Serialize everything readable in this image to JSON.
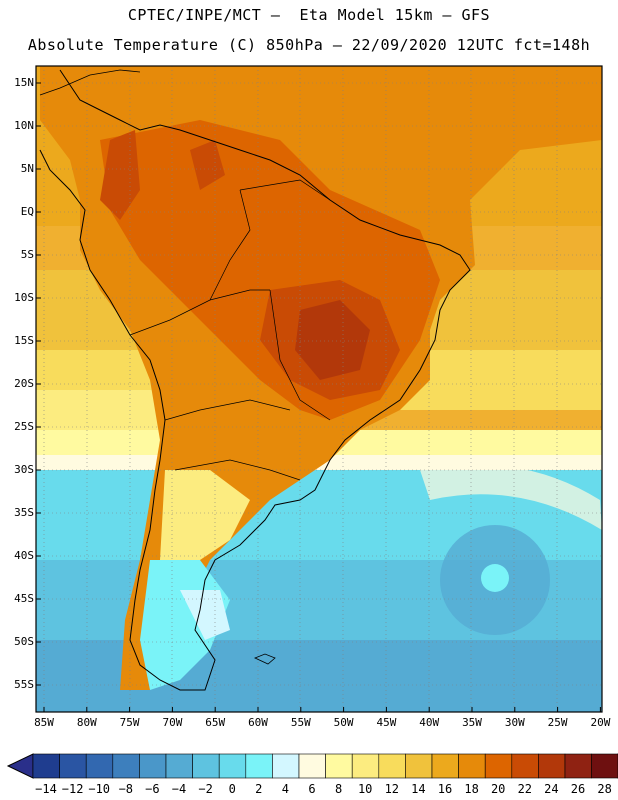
{
  "header": {
    "line1": "CPTEC/INPE/MCT –  Eta Model 15km – GFS",
    "line2": "Absolute Temperature (C) 850hPa – 22/09/2020 12UTC fct=148h"
  },
  "axes": {
    "lat_labels": [
      "15N",
      "10N",
      "5N",
      "EQ",
      "5S",
      "10S",
      "15S",
      "20S",
      "25S",
      "30S",
      "35S",
      "40S",
      "45S",
      "50S",
      "55S"
    ],
    "lon_labels": [
      "85W",
      "80W",
      "75W",
      "70W",
      "65W",
      "60W",
      "55W",
      "50W",
      "45W",
      "40W",
      "35W",
      "30W",
      "25W",
      "20W"
    ]
  },
  "colorbar": {
    "labels": [
      "-14",
      "-12",
      "-10",
      "-8",
      "-6",
      "-4",
      "-2",
      "0",
      "2",
      "4",
      "6",
      "8",
      "10",
      "12",
      "14",
      "16",
      "18",
      "20",
      "22",
      "24",
      "26",
      "28"
    ],
    "colors": [
      "#1f3d8f",
      "#2a55a3",
      "#3268b0",
      "#3d7fbd",
      "#4a97c9",
      "#55abd3",
      "#5ec3e0",
      "#68dbec",
      "#7af3f8",
      "#d3f7ff",
      "#fffbe0",
      "#fffaa0",
      "#fcec80",
      "#f8dc5c",
      "#f0c23c",
      "#eca91d",
      "#e68a0a",
      "#dd6500",
      "#c94b05",
      "#b2380a",
      "#8f2212",
      "#6e1010"
    ]
  }
}
